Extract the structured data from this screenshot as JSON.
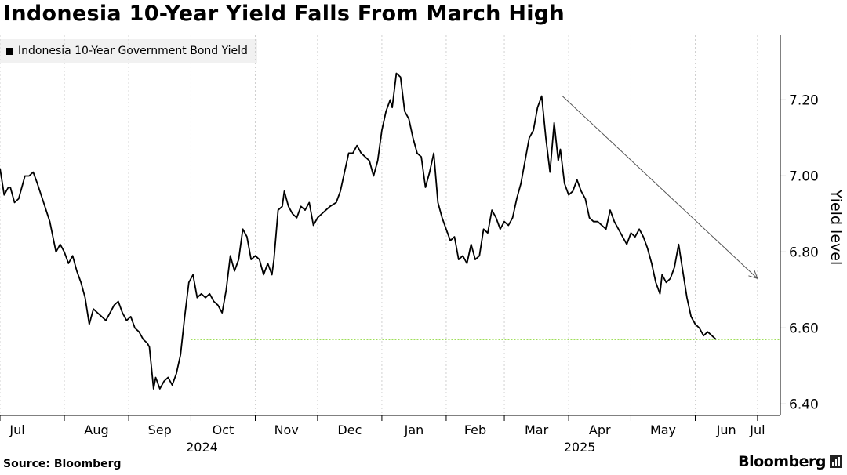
{
  "header": {
    "title": "Indonesia 10-Year Yield Falls From March High"
  },
  "legend": {
    "series_label": "Indonesia 10-Year Government Bond Yield"
  },
  "footer": {
    "source": "Source: Bloomberg",
    "brand": "Bloomberg"
  },
  "colors": {
    "line": "#000000",
    "grid": "#d0d0d0",
    "reference": "#7ed321",
    "arrow": "#555555"
  },
  "chart_data": {
    "type": "line",
    "title": "Indonesia 10-Year Yield Falls From March High",
    "ylabel": "Yield level",
    "xlabel": "",
    "ylim": [
      6.37,
      7.37
    ],
    "yticks": [
      6.4,
      6.6,
      6.8,
      7.0,
      7.2
    ],
    "ytick_labels": [
      "6.40",
      "6.60",
      "6.80",
      "7.00",
      "7.20"
    ],
    "x_start": "2024-07-01",
    "x_end": "2025-07-12",
    "month_ticks": [
      {
        "label": "Jul",
        "date": "2024-07-01"
      },
      {
        "label": "Aug",
        "date": "2024-08-01"
      },
      {
        "label": "Sep",
        "date": "2024-09-01"
      },
      {
        "label": "Oct",
        "date": "2024-10-01"
      },
      {
        "label": "Nov",
        "date": "2024-11-01"
      },
      {
        "label": "Dec",
        "date": "2024-12-01"
      },
      {
        "label": "Jan",
        "date": "2025-01-01"
      },
      {
        "label": "Feb",
        "date": "2025-02-01"
      },
      {
        "label": "Mar",
        "date": "2025-03-01"
      },
      {
        "label": "Apr",
        "date": "2025-04-01"
      },
      {
        "label": "May",
        "date": "2025-05-01"
      },
      {
        "label": "Jun",
        "date": "2025-06-01"
      },
      {
        "label": "Jul",
        "date": "2025-07-01"
      }
    ],
    "year_labels": [
      {
        "label": "2024",
        "date": "2024-10-01"
      },
      {
        "label": "2025",
        "date": "2025-04-01"
      }
    ],
    "grid": true,
    "legend_position": "top-left",
    "reference_line": {
      "y": 6.57,
      "from": "2024-10-01",
      "style": "dotted"
    },
    "trend_arrow": {
      "from": {
        "date": "2025-03-29",
        "y": 7.21
      },
      "to": {
        "date": "2025-07-01",
        "y": 6.73
      }
    },
    "series": [
      {
        "name": "Indonesia 10-Year Government Bond Yield",
        "points": [
          [
            "2024-07-01",
            7.02
          ],
          [
            "2024-07-03",
            6.95
          ],
          [
            "2024-07-05",
            6.97
          ],
          [
            "2024-07-06",
            6.97
          ],
          [
            "2024-07-08",
            6.93
          ],
          [
            "2024-07-10",
            6.94
          ],
          [
            "2024-07-13",
            7.0
          ],
          [
            "2024-07-15",
            7.0
          ],
          [
            "2024-07-17",
            7.01
          ],
          [
            "2024-07-19",
            6.98
          ],
          [
            "2024-07-22",
            6.93
          ],
          [
            "2024-07-25",
            6.88
          ],
          [
            "2024-07-28",
            6.8
          ],
          [
            "2024-07-30",
            6.82
          ],
          [
            "2024-08-01",
            6.8
          ],
          [
            "2024-08-03",
            6.77
          ],
          [
            "2024-08-05",
            6.79
          ],
          [
            "2024-08-07",
            6.75
          ],
          [
            "2024-08-09",
            6.72
          ],
          [
            "2024-08-11",
            6.68
          ],
          [
            "2024-08-13",
            6.61
          ],
          [
            "2024-08-15",
            6.65
          ],
          [
            "2024-08-17",
            6.64
          ],
          [
            "2024-08-19",
            6.63
          ],
          [
            "2024-08-21",
            6.62
          ],
          [
            "2024-08-23",
            6.64
          ],
          [
            "2024-08-25",
            6.66
          ],
          [
            "2024-08-27",
            6.67
          ],
          [
            "2024-08-29",
            6.64
          ],
          [
            "2024-08-31",
            6.62
          ],
          [
            "2024-09-02",
            6.63
          ],
          [
            "2024-09-04",
            6.6
          ],
          [
            "2024-09-06",
            6.59
          ],
          [
            "2024-09-08",
            6.57
          ],
          [
            "2024-09-10",
            6.56
          ],
          [
            "2024-09-11",
            6.55
          ],
          [
            "2024-09-13",
            6.44
          ],
          [
            "2024-09-14",
            6.47
          ],
          [
            "2024-09-16",
            6.44
          ],
          [
            "2024-09-18",
            6.46
          ],
          [
            "2024-09-20",
            6.47
          ],
          [
            "2024-09-22",
            6.45
          ],
          [
            "2024-09-24",
            6.48
          ],
          [
            "2024-09-26",
            6.53
          ],
          [
            "2024-09-28",
            6.63
          ],
          [
            "2024-09-30",
            6.72
          ],
          [
            "2024-10-02",
            6.74
          ],
          [
            "2024-10-04",
            6.68
          ],
          [
            "2024-10-06",
            6.69
          ],
          [
            "2024-10-08",
            6.68
          ],
          [
            "2024-10-10",
            6.69
          ],
          [
            "2024-10-12",
            6.67
          ],
          [
            "2024-10-14",
            6.66
          ],
          [
            "2024-10-16",
            6.64
          ],
          [
            "2024-10-18",
            6.7
          ],
          [
            "2024-10-20",
            6.79
          ],
          [
            "2024-10-22",
            6.75
          ],
          [
            "2024-10-24",
            6.78
          ],
          [
            "2024-10-26",
            6.86
          ],
          [
            "2024-10-28",
            6.84
          ],
          [
            "2024-10-30",
            6.78
          ],
          [
            "2024-11-01",
            6.79
          ],
          [
            "2024-11-03",
            6.78
          ],
          [
            "2024-11-05",
            6.74
          ],
          [
            "2024-11-07",
            6.77
          ],
          [
            "2024-11-09",
            6.74
          ],
          [
            "2024-11-10",
            6.78
          ],
          [
            "2024-11-12",
            6.91
          ],
          [
            "2024-11-14",
            6.92
          ],
          [
            "2024-11-15",
            6.96
          ],
          [
            "2024-11-17",
            6.92
          ],
          [
            "2024-11-19",
            6.9
          ],
          [
            "2024-11-21",
            6.89
          ],
          [
            "2024-11-23",
            6.92
          ],
          [
            "2024-11-25",
            6.91
          ],
          [
            "2024-11-27",
            6.93
          ],
          [
            "2024-11-29",
            6.87
          ],
          [
            "2024-12-01",
            6.89
          ],
          [
            "2024-12-03",
            6.9
          ],
          [
            "2024-12-05",
            6.91
          ],
          [
            "2024-12-07",
            6.92
          ],
          [
            "2024-12-10",
            6.93
          ],
          [
            "2024-12-12",
            6.96
          ],
          [
            "2024-12-14",
            7.01
          ],
          [
            "2024-12-16",
            7.06
          ],
          [
            "2024-12-18",
            7.06
          ],
          [
            "2024-12-20",
            7.08
          ],
          [
            "2024-12-22",
            7.06
          ],
          [
            "2024-12-24",
            7.05
          ],
          [
            "2024-12-26",
            7.04
          ],
          [
            "2024-12-28",
            7.0
          ],
          [
            "2024-12-30",
            7.04
          ],
          [
            "2025-01-01",
            7.12
          ],
          [
            "2025-01-03",
            7.17
          ],
          [
            "2025-01-05",
            7.2
          ],
          [
            "2025-01-06",
            7.18
          ],
          [
            "2025-01-08",
            7.27
          ],
          [
            "2025-01-10",
            7.26
          ],
          [
            "2025-01-12",
            7.17
          ],
          [
            "2025-01-14",
            7.15
          ],
          [
            "2025-01-16",
            7.1
          ],
          [
            "2025-01-18",
            7.06
          ],
          [
            "2025-01-20",
            7.05
          ],
          [
            "2025-01-22",
            6.97
          ],
          [
            "2025-01-24",
            7.01
          ],
          [
            "2025-01-26",
            7.06
          ],
          [
            "2025-01-28",
            6.93
          ],
          [
            "2025-01-30",
            6.89
          ],
          [
            "2025-02-01",
            6.86
          ],
          [
            "2025-02-03",
            6.83
          ],
          [
            "2025-02-05",
            6.84
          ],
          [
            "2025-02-07",
            6.78
          ],
          [
            "2025-02-09",
            6.79
          ],
          [
            "2025-02-11",
            6.77
          ],
          [
            "2025-02-13",
            6.82
          ],
          [
            "2025-02-15",
            6.78
          ],
          [
            "2025-02-17",
            6.79
          ],
          [
            "2025-02-19",
            6.86
          ],
          [
            "2025-02-21",
            6.85
          ],
          [
            "2025-02-23",
            6.91
          ],
          [
            "2025-02-25",
            6.89
          ],
          [
            "2025-02-27",
            6.86
          ],
          [
            "2025-03-01",
            6.88
          ],
          [
            "2025-03-03",
            6.87
          ],
          [
            "2025-03-05",
            6.89
          ],
          [
            "2025-03-07",
            6.94
          ],
          [
            "2025-03-09",
            6.98
          ],
          [
            "2025-03-11",
            7.04
          ],
          [
            "2025-03-13",
            7.1
          ],
          [
            "2025-03-15",
            7.12
          ],
          [
            "2025-03-17",
            7.18
          ],
          [
            "2025-03-19",
            7.21
          ],
          [
            "2025-03-21",
            7.1
          ],
          [
            "2025-03-23",
            7.01
          ],
          [
            "2025-03-25",
            7.14
          ],
          [
            "2025-03-27",
            7.04
          ],
          [
            "2025-03-28",
            7.07
          ],
          [
            "2025-03-30",
            6.98
          ],
          [
            "2025-04-01",
            6.95
          ],
          [
            "2025-04-03",
            6.96
          ],
          [
            "2025-04-05",
            6.99
          ],
          [
            "2025-04-07",
            6.96
          ],
          [
            "2025-04-09",
            6.94
          ],
          [
            "2025-04-11",
            6.89
          ],
          [
            "2025-04-13",
            6.88
          ],
          [
            "2025-04-15",
            6.88
          ],
          [
            "2025-04-17",
            6.87
          ],
          [
            "2025-04-19",
            6.86
          ],
          [
            "2025-04-21",
            6.91
          ],
          [
            "2025-04-23",
            6.88
          ],
          [
            "2025-04-25",
            6.86
          ],
          [
            "2025-04-27",
            6.84
          ],
          [
            "2025-04-29",
            6.82
          ],
          [
            "2025-05-01",
            6.85
          ],
          [
            "2025-05-03",
            6.84
          ],
          [
            "2025-05-05",
            6.86
          ],
          [
            "2025-05-07",
            6.84
          ],
          [
            "2025-05-09",
            6.81
          ],
          [
            "2025-05-11",
            6.77
          ],
          [
            "2025-05-13",
            6.72
          ],
          [
            "2025-05-15",
            6.69
          ],
          [
            "2025-05-16",
            6.74
          ],
          [
            "2025-05-18",
            6.72
          ],
          [
            "2025-05-20",
            6.73
          ],
          [
            "2025-05-22",
            6.76
          ],
          [
            "2025-05-24",
            6.82
          ],
          [
            "2025-05-26",
            6.75
          ],
          [
            "2025-05-28",
            6.68
          ],
          [
            "2025-05-30",
            6.63
          ],
          [
            "2025-06-01",
            6.61
          ],
          [
            "2025-06-03",
            6.6
          ],
          [
            "2025-06-05",
            6.58
          ],
          [
            "2025-06-07",
            6.59
          ],
          [
            "2025-06-09",
            6.58
          ],
          [
            "2025-06-11",
            6.57
          ]
        ]
      }
    ]
  }
}
